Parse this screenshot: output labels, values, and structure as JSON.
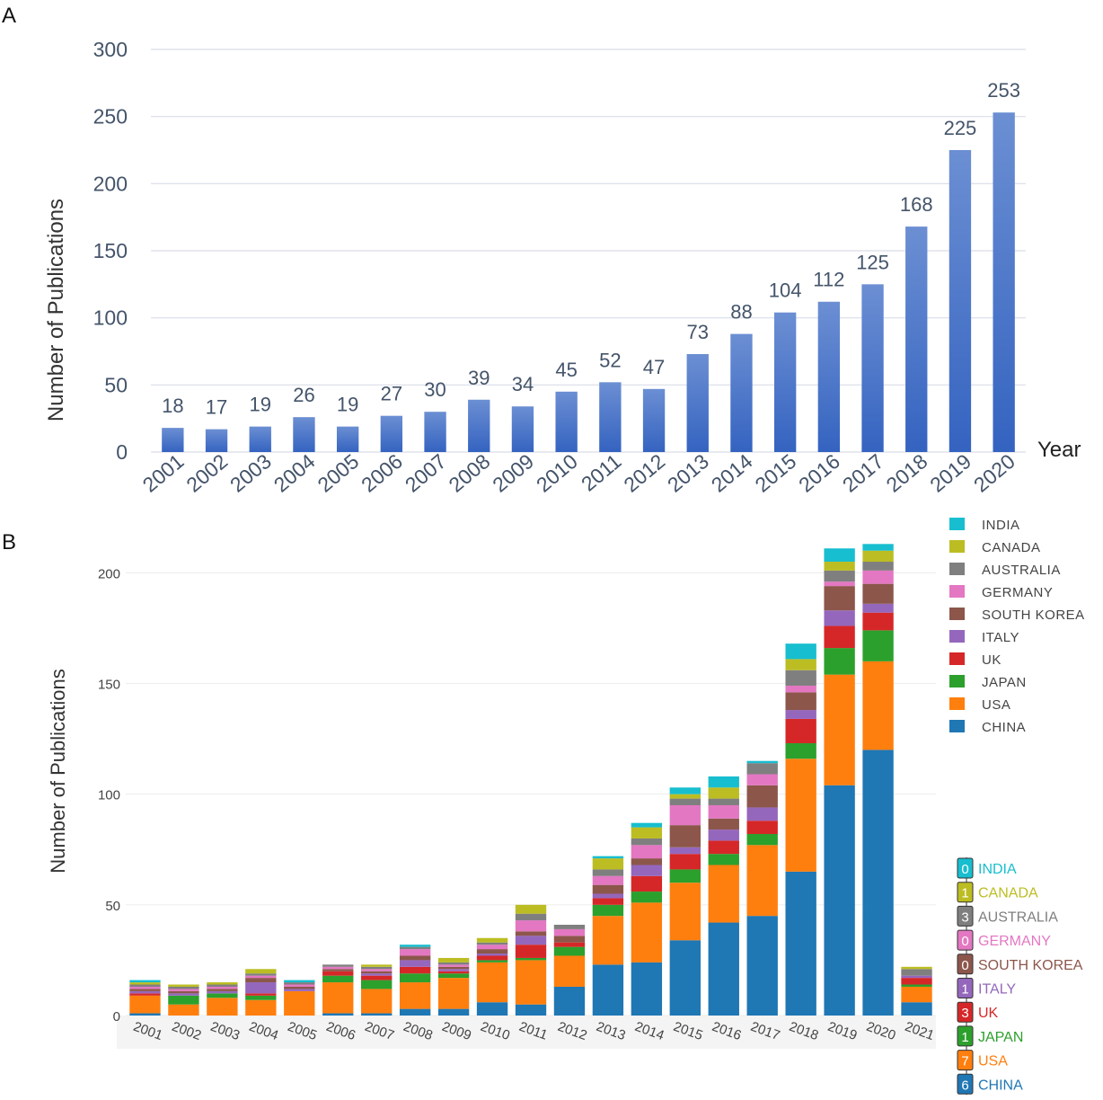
{
  "panels": {
    "a": "A",
    "b": "B"
  },
  "chart_data": [
    {
      "type": "bar",
      "panel": "A",
      "ylabel": "Number of Publications",
      "xlabel": "Year",
      "ylim": [
        0,
        300
      ],
      "yticks": [
        0,
        50,
        100,
        150,
        200,
        250,
        300
      ],
      "grid": true,
      "color": "#4472C4",
      "categories": [
        "2001",
        "2002",
        "2003",
        "2004",
        "2005",
        "2006",
        "2007",
        "2008",
        "2009",
        "2010",
        "2011",
        "2012",
        "2013",
        "2014",
        "2015",
        "2016",
        "2017",
        "2018",
        "2019",
        "2020"
      ],
      "values": [
        18,
        17,
        19,
        26,
        19,
        27,
        30,
        39,
        34,
        45,
        52,
        47,
        73,
        88,
        104,
        112,
        125,
        168,
        225,
        253
      ]
    },
    {
      "type": "bar",
      "stacked": true,
      "panel": "B",
      "ylabel": "Number of Publications",
      "ylim": [
        0,
        218
      ],
      "yticks": [
        0,
        50,
        100,
        150,
        200
      ],
      "categories": [
        "2001",
        "2002",
        "2003",
        "2004",
        "2005",
        "2006",
        "2007",
        "2008",
        "2009",
        "2010",
        "2011",
        "2012",
        "2013",
        "2014",
        "2015",
        "2016",
        "2017",
        "2018",
        "2019",
        "2020",
        "2021"
      ],
      "legend_order": [
        "INDIA",
        "CANADA",
        "AUSTRALIA",
        "GERMANY",
        "SOUTH KOREA",
        "ITALY",
        "UK",
        "JAPAN",
        "USA",
        "CHINA"
      ],
      "series": [
        {
          "name": "CHINA",
          "color": "#1F77B4",
          "values": [
            1,
            0,
            0,
            0,
            0,
            1,
            1,
            3,
            3,
            6,
            5,
            13,
            23,
            24,
            34,
            42,
            45,
            65,
            104,
            120,
            6
          ]
        },
        {
          "name": "USA",
          "color": "#FF7F0E",
          "values": [
            8,
            5,
            8,
            7,
            11,
            14,
            11,
            12,
            14,
            18,
            20,
            14,
            22,
            27,
            26,
            26,
            32,
            51,
            50,
            40,
            7
          ]
        },
        {
          "name": "JAPAN",
          "color": "#2CA02C",
          "values": [
            0,
            4,
            2,
            2,
            0,
            3,
            4,
            4,
            2,
            1,
            1,
            4,
            5,
            5,
            6,
            5,
            5,
            7,
            12,
            14,
            1
          ]
        },
        {
          "name": "UK",
          "color": "#D62728",
          "values": [
            1,
            0,
            0,
            1,
            0,
            2,
            2,
            3,
            1,
            2,
            6,
            2,
            3,
            7,
            7,
            6,
            6,
            11,
            10,
            8,
            3
          ]
        },
        {
          "name": "ITALY",
          "color": "#9467BD",
          "values": [
            1,
            1,
            1,
            5,
            1,
            0,
            1,
            3,
            1,
            1,
            4,
            0,
            2,
            5,
            3,
            5,
            6,
            4,
            7,
            4,
            1
          ]
        },
        {
          "name": "SOUTH KOREA",
          "color": "#8C564B",
          "values": [
            1,
            1,
            1,
            2,
            1,
            1,
            1,
            2,
            1,
            2,
            2,
            3,
            4,
            3,
            10,
            5,
            10,
            8,
            11,
            9,
            0
          ]
        },
        {
          "name": "GERMANY",
          "color": "#E377C2",
          "values": [
            1,
            1,
            1,
            1,
            1,
            1,
            1,
            3,
            1,
            2,
            5,
            3,
            4,
            6,
            9,
            6,
            5,
            3,
            2,
            6,
            0
          ]
        },
        {
          "name": "AUSTRALIA",
          "color": "#7F7F7F",
          "values": [
            1,
            1,
            1,
            1,
            1,
            1,
            1,
            1,
            1,
            1,
            3,
            2,
            3,
            3,
            3,
            3,
            5,
            7,
            5,
            4,
            3
          ]
        },
        {
          "name": "CANADA",
          "color": "#BCBD22",
          "values": [
            1,
            1,
            1,
            2,
            0,
            0,
            1,
            0,
            2,
            2,
            4,
            0,
            5,
            5,
            2,
            5,
            0,
            5,
            4,
            5,
            1
          ]
        },
        {
          "name": "INDIA",
          "color": "#17BECF",
          "values": [
            1,
            0,
            0,
            0,
            1,
            0,
            0,
            1,
            0,
            0,
            0,
            0,
            1,
            2,
            3,
            5,
            1,
            7,
            6,
            3,
            0
          ]
        }
      ],
      "annotation_2021": [
        {
          "value": "0",
          "name": "INDIA"
        },
        {
          "value": "1",
          "name": "CANADA"
        },
        {
          "value": "3",
          "name": "AUSTRALIA"
        },
        {
          "value": "0",
          "name": "GERMANY"
        },
        {
          "value": "0",
          "name": "SOUTH KOREA"
        },
        {
          "value": "1",
          "name": "ITALY"
        },
        {
          "value": "3",
          "name": "UK"
        },
        {
          "value": "1",
          "name": "JAPAN"
        },
        {
          "value": "7",
          "name": "USA"
        },
        {
          "value": "6",
          "name": "CHINA"
        }
      ]
    }
  ]
}
